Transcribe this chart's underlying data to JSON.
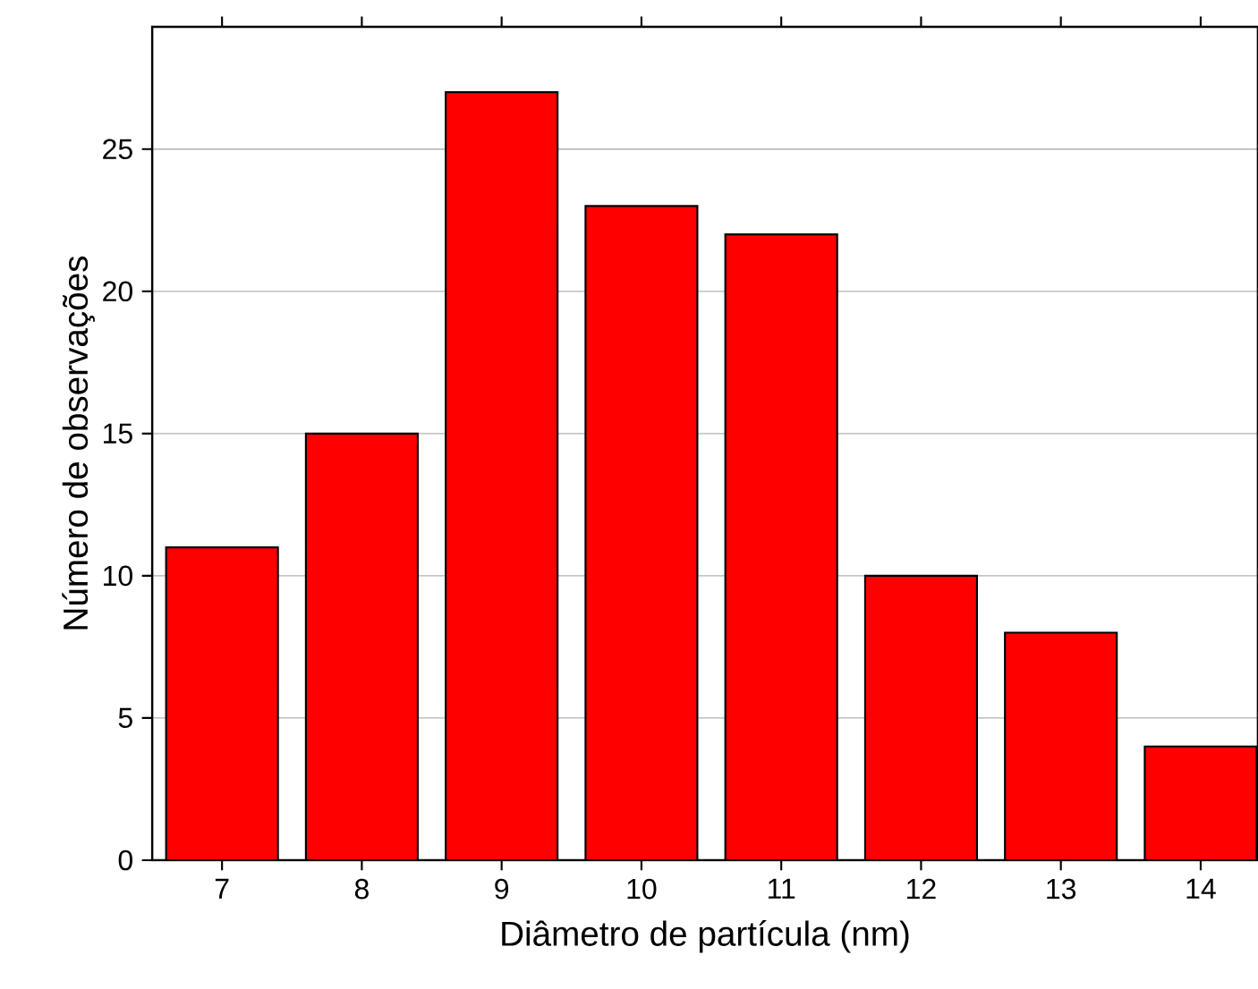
{
  "chart_data": {
    "type": "bar",
    "xlabel": "Diâmetro de partícula (nm)",
    "ylabel": "Número de observações",
    "x": [
      7,
      8,
      9,
      10,
      11,
      12,
      13,
      14
    ],
    "values": [
      11,
      15,
      27,
      23,
      22,
      10,
      8,
      4
    ],
    "color": "#ff0000",
    "xlim": [
      6.5,
      14.41
    ],
    "xticks": [
      7,
      8,
      9,
      10,
      11,
      12,
      13,
      14
    ],
    "ylim": [
      0,
      29.3
    ],
    "yticks": [
      0,
      5,
      10,
      15,
      20,
      25
    ],
    "grid": "y"
  }
}
